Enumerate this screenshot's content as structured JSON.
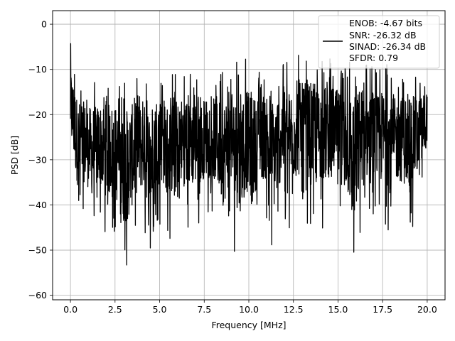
{
  "chart_data": {
    "type": "line",
    "title": "",
    "xlabel": "Frequency [MHz]",
    "ylabel": "PSD [dB]",
    "xlim": [
      -1.0,
      21.0
    ],
    "ylim": [
      -61.0,
      3.0
    ],
    "x_ticks": [
      0.0,
      2.5,
      5.0,
      7.5,
      10.0,
      12.5,
      15.0,
      17.5,
      20.0
    ],
    "x_tick_labels": [
      "0.0",
      "2.5",
      "5.0",
      "7.5",
      "10.0",
      "12.5",
      "15.0",
      "17.5",
      "20.0"
    ],
    "y_ticks": [
      0,
      -10,
      -20,
      -30,
      -40,
      -50,
      -60
    ],
    "y_tick_labels": [
      "0",
      "−10",
      "−20",
      "−30",
      "−40",
      "−50",
      "−60"
    ],
    "grid": true,
    "legend_position": "top-right",
    "legend_entries": [
      "ENOB: -4.67 bits",
      "SNR: -26.32 dB",
      "SINAD: -26.34 dB",
      "SFDR: 0.79"
    ],
    "series": [
      {
        "name": "ENOB: -4.67 bits",
        "color": "#000000",
        "x_range_mhz": [
          0.0,
          20.0
        ],
        "points_description_values": {
          "x": [
            0.0,
            0.05,
            0.1,
            0.2,
            0.3,
            0.5,
            0.8,
            1.2,
            1.5,
            2.0,
            2.5,
            2.6,
            3.0,
            3.5,
            4.0,
            4.3,
            4.5,
            5.0,
            5.5,
            6.0,
            6.5,
            7.0,
            7.5,
            8.0,
            8.6,
            8.7,
            9.0,
            9.5,
            10.0,
            10.5,
            11.0,
            11.5,
            12.0,
            12.3,
            12.5,
            13.0,
            13.5,
            14.0,
            14.5,
            15.0,
            15.7,
            16.0,
            16.5,
            17.0,
            17.5,
            18.0,
            18.5,
            19.0,
            19.5,
            20.0
          ],
          "y": [
            -20,
            -4.3,
            -15,
            -22,
            -18,
            -20,
            -24,
            -21,
            -26,
            -22,
            -20,
            -23,
            -25,
            -19,
            -22,
            -26,
            -21,
            -24,
            -20,
            -18,
            -22,
            -25,
            -20,
            -23,
            -26,
            -21,
            -19,
            -22,
            -20,
            -18,
            -23,
            -21,
            -19,
            -17,
            -22,
            -20,
            -24,
            -21,
            -19,
            -22,
            -25,
            -20,
            -18,
            -23,
            -21,
            -19,
            -22,
            -24,
            -21,
            -20
          ]
        },
        "envelope_max": [
          -4.3,
          -11,
          -12,
          -13,
          -12,
          -11,
          -12,
          -13,
          -10,
          -11,
          -12,
          -11,
          -9,
          -12,
          -10,
          -11,
          -8,
          -10,
          -12,
          -10,
          -11,
          -9,
          -10,
          -8,
          -7,
          -9,
          -10,
          -8,
          -9,
          -7,
          -8,
          -6,
          -7,
          -6,
          -8,
          -7,
          -8,
          -9,
          -7,
          -6,
          -8,
          -9,
          -10,
          -8,
          -10,
          -11,
          -9,
          -10,
          -11,
          -11
        ],
        "envelope_min": [
          -35,
          -46,
          -44,
          -48,
          -45,
          -49,
          -46,
          -56.5,
          -55,
          -48,
          -46,
          -53,
          -44,
          -46,
          -49,
          -45,
          -47,
          -46,
          -44,
          -42,
          -45,
          -52,
          -44,
          -56.5,
          -48,
          -50,
          -44,
          -45,
          -53,
          -44,
          -47,
          -45,
          -43,
          -45,
          -44,
          -46,
          -42,
          -45,
          -49,
          -58,
          -45,
          -44,
          -46,
          -45,
          -47,
          -44,
          -46,
          -45,
          -43,
          -33
        ]
      }
    ]
  }
}
